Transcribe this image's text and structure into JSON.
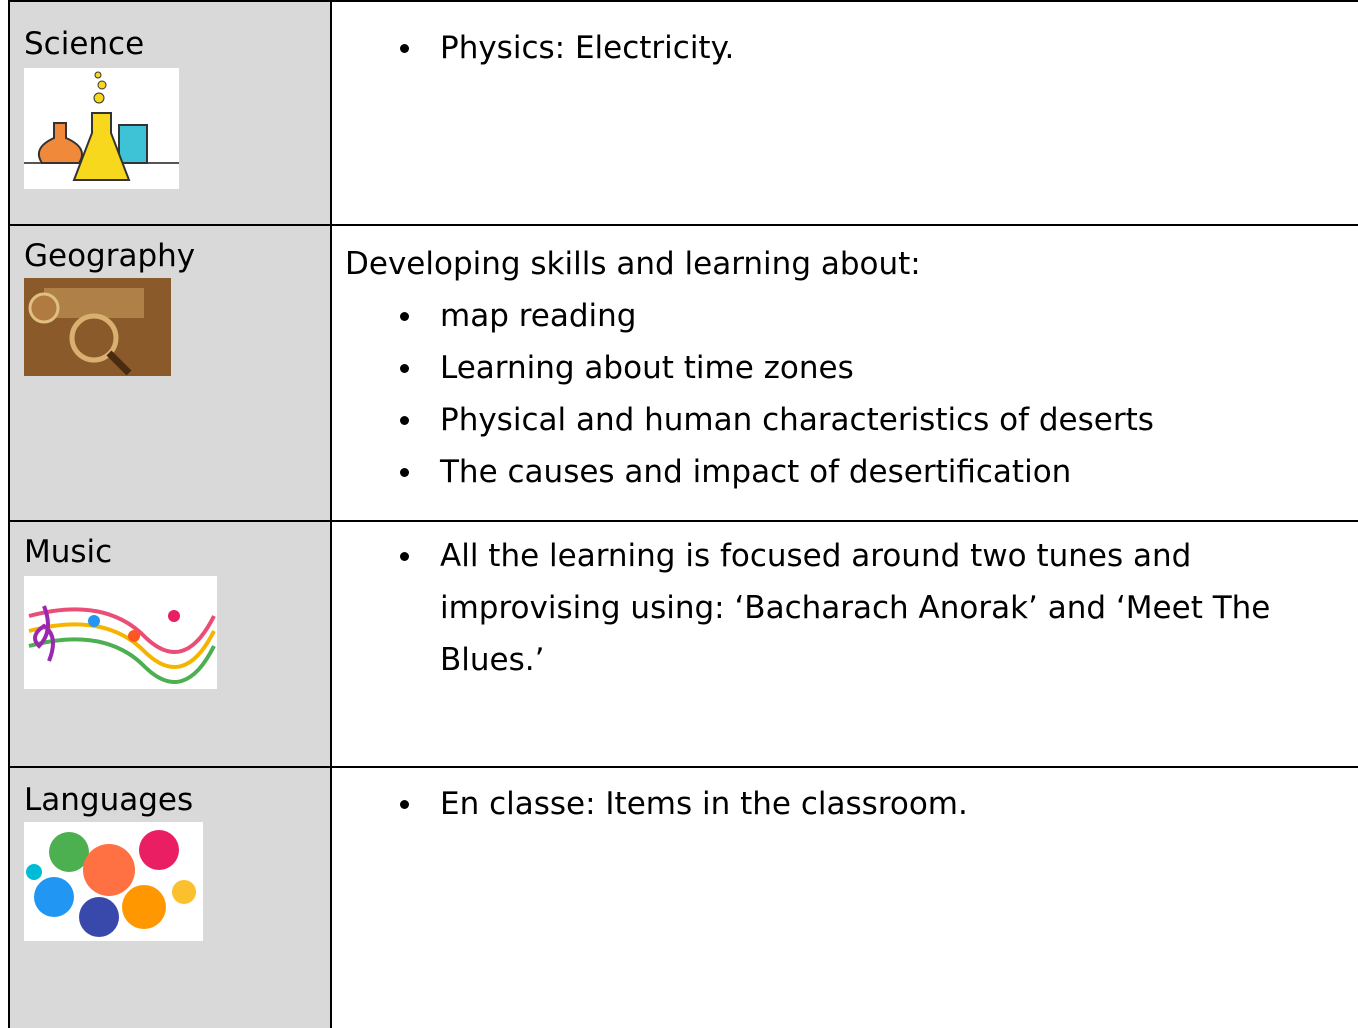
{
  "table": {
    "rows": [
      {
        "subject": "Science",
        "items": [
          "Physics: Electricity."
        ]
      },
      {
        "subject": "Geography",
        "intro": "Developing skills and learning about:",
        "items": [
          "map reading",
          "Learning about time zones",
          "Physical and human characteristics of deserts",
          "The causes and impact of desertification"
        ]
      },
      {
        "subject": "Music",
        "items": [
          "All the learning is focused around two tunes and improvising using: ‘Bacharach Anorak’ and ‘Meet The Blues.’"
        ]
      },
      {
        "subject": "Languages",
        "items": [
          "En classe: Items in the classroom."
        ]
      }
    ]
  }
}
